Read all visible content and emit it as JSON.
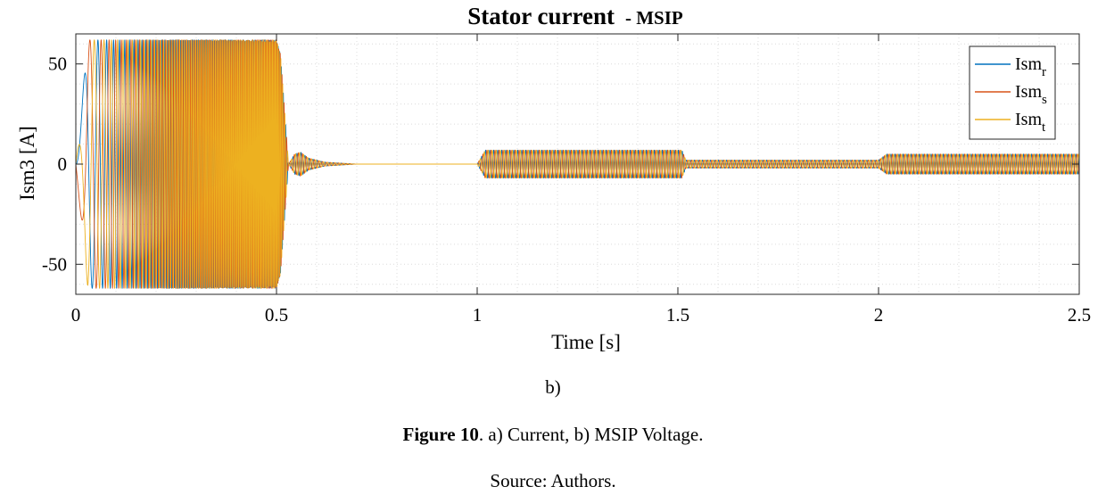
{
  "chart_data": {
    "type": "line",
    "title": "Stator current",
    "title_suffix": "- MSIP",
    "xlabel": "Time [s]",
    "ylabel": "Ism3 [A]",
    "xlim": [
      0,
      2.5
    ],
    "ylim": [
      -65,
      65
    ],
    "xticks": [
      0,
      0.5,
      1,
      1.5,
      2,
      2.5
    ],
    "xtick_labels": [
      "0",
      "0.5",
      "1",
      "1.5",
      "2",
      "2.5"
    ],
    "yticks": [
      -50,
      0,
      50
    ],
    "ytick_labels": [
      "-50",
      "0",
      "50"
    ],
    "grid": true,
    "legend_position": "top-right",
    "legend": [
      {
        "base": "Ism",
        "sub": "r"
      },
      {
        "base": "Ism",
        "sub": "s"
      },
      {
        "base": "Ism",
        "sub": "t"
      }
    ],
    "series": [
      {
        "name": "Ism_r",
        "color": "#0072BD",
        "phase_deg": 0
      },
      {
        "name": "Ism_s",
        "color": "#D95319",
        "phase_deg": -120
      },
      {
        "name": "Ism_t",
        "color": "#EDB120",
        "phase_deg": 120
      }
    ],
    "envelope": {
      "t": [
        0,
        0.03,
        0.08,
        0.5,
        0.5,
        0.51,
        0.53,
        0.545,
        0.56,
        0.58,
        0.62,
        0.7,
        1.0,
        1.02,
        1.04,
        1.5,
        1.51,
        1.52,
        2.0,
        2.02,
        2.04,
        2.5
      ],
      "amplitude": [
        0,
        62,
        62,
        62,
        62,
        55,
        0,
        5,
        6,
        3,
        1,
        0,
        0,
        7,
        7,
        7,
        7,
        2,
        2,
        5,
        5,
        5
      ]
    },
    "frequency_hz": {
      "t": [
        0,
        0.5,
        0.53,
        1.0,
        2.5
      ],
      "f": [
        6,
        310,
        100,
        100,
        100
      ]
    }
  },
  "captions": {
    "subfigure": "b)",
    "figure_bold": "Figure 10",
    "figure_rest": ". a) Current, b) MSIP Voltage.",
    "source": "Source: Authors."
  }
}
